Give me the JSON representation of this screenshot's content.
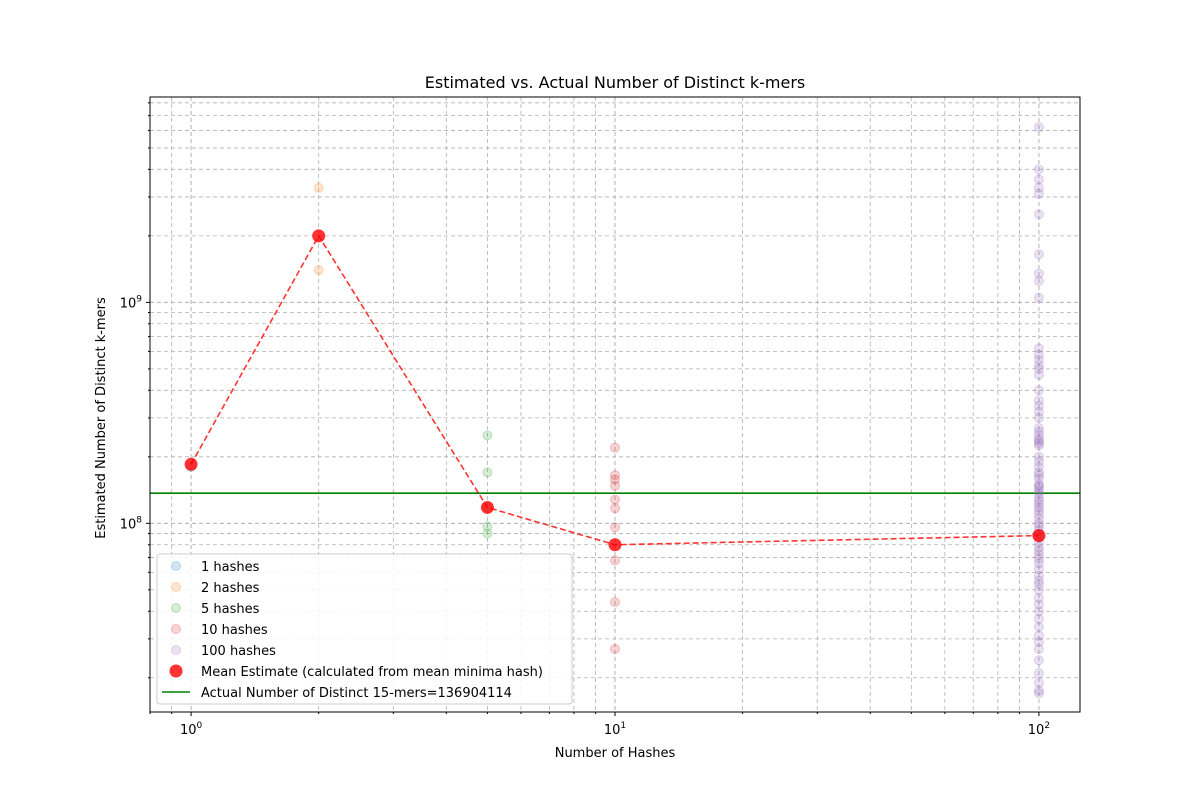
{
  "chart_data": {
    "type": "scatter",
    "title": "Estimated vs. Actual Number of Distinct k-mers",
    "xlabel": "Number of Hashes",
    "ylabel": "Estimated Number of Distinct k-mers",
    "x_scale": "log",
    "y_scale": "log",
    "xlim": [
      0.8,
      125
    ],
    "ylim": [
      14000000,
      8500000000
    ],
    "grid": true,
    "legend_position": "lower-left",
    "x_major_ticks": [
      {
        "value": 1,
        "label": "10^0"
      },
      {
        "value": 10,
        "label": "10^1"
      },
      {
        "value": 100,
        "label": "10^2"
      }
    ],
    "y_major_ticks": [
      {
        "value": 100000000,
        "label": "10^8"
      },
      {
        "value": 1000000000,
        "label": "10^9"
      }
    ],
    "series": [
      {
        "name": "1 hashes",
        "color": "#1f77b4",
        "alpha": 0.2,
        "x": 1,
        "values": [
          180000000
        ]
      },
      {
        "name": "2 hashes",
        "color": "#ff7f0e",
        "alpha": 0.2,
        "x": 2,
        "values": [
          3300000000,
          1400000000
        ]
      },
      {
        "name": "5 hashes",
        "color": "#2ca02c",
        "alpha": 0.2,
        "x": 5,
        "values": [
          250000000,
          170000000,
          118000000,
          97000000,
          90000000
        ]
      },
      {
        "name": "10 hashes",
        "color": "#d62728",
        "alpha": 0.2,
        "x": 10,
        "values": [
          220000000,
          165000000,
          158000000,
          148000000,
          128000000,
          117000000,
          96000000,
          68000000,
          44000000,
          27000000
        ]
      },
      {
        "name": "100 hashes",
        "color": "#9467bd",
        "alpha": 0.2,
        "x": 100,
        "values": [
          6200000000,
          4000000000,
          3600000000,
          3300000000,
          3100000000,
          2500000000,
          1650000000,
          1350000000,
          1250000000,
          1050000000,
          620000000,
          580000000,
          550000000,
          520000000,
          500000000,
          470000000,
          400000000,
          360000000,
          340000000,
          320000000,
          300000000,
          270000000,
          260000000,
          250000000,
          240000000,
          235000000,
          230000000,
          225000000,
          200000000,
          190000000,
          180000000,
          170000000,
          165000000,
          160000000,
          150000000,
          148000000,
          145000000,
          140000000,
          136000000,
          130000000,
          126000000,
          122000000,
          118000000,
          114000000,
          110000000,
          105000000,
          100000000,
          97000000,
          93000000,
          90000000,
          86000000,
          82000000,
          78000000,
          75000000,
          72000000,
          69000000,
          66000000,
          62000000,
          58000000,
          55000000,
          53000000,
          50000000,
          46000000,
          43000000,
          40000000,
          37000000,
          34000000,
          31000000,
          29000000,
          27000000,
          24000000,
          21000000,
          19000000,
          17500000,
          17000000
        ]
      }
    ],
    "mean_estimate": {
      "name": "Mean Estimate (calculated from mean minima hash)",
      "color": "#ff0000",
      "line_style": "dashed",
      "x": [
        1,
        2,
        5,
        10,
        100
      ],
      "y": [
        185000000,
        2000000000,
        118000000,
        80000000,
        88000000
      ]
    },
    "actual_line": {
      "name": "Actual Number of Distinct 15-mers=136904114",
      "color": "#008000",
      "y": 136904114
    }
  }
}
